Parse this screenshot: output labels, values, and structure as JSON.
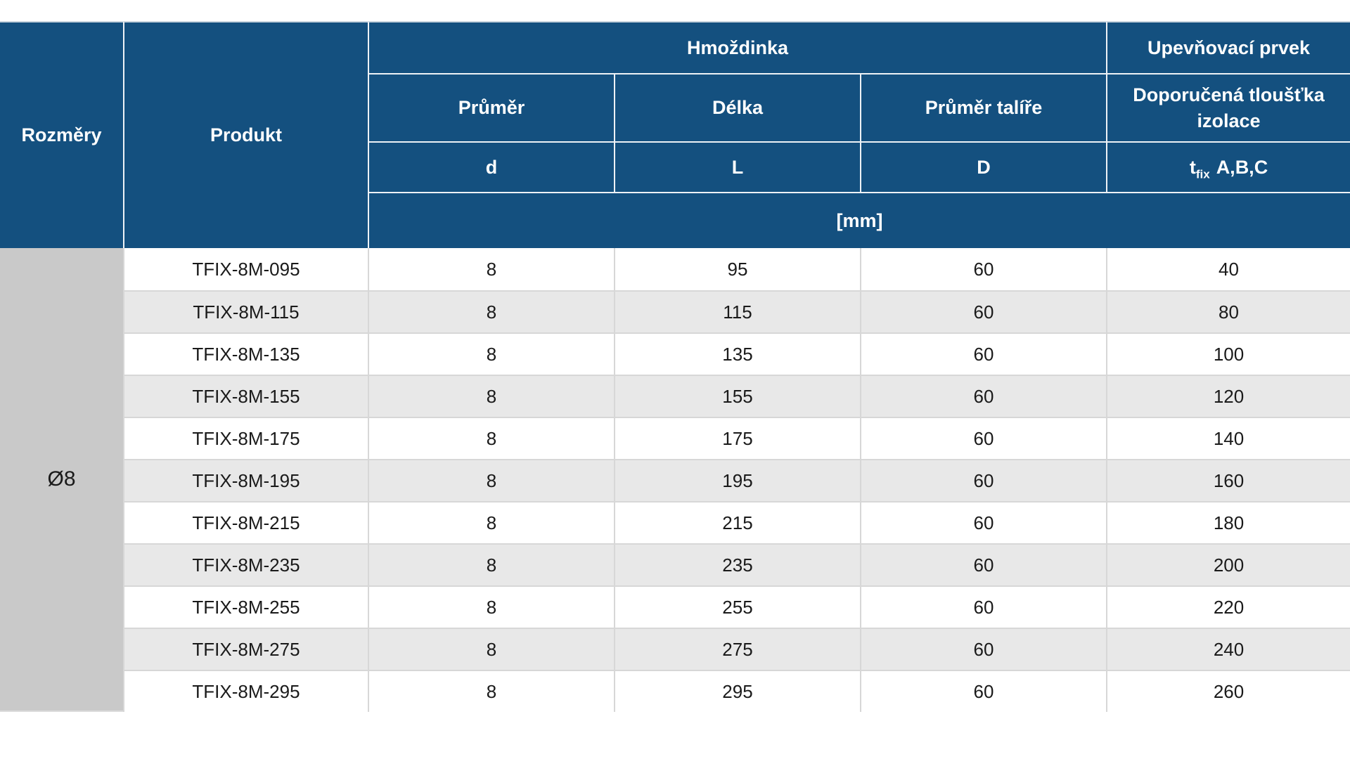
{
  "page": {
    "background": "#ffffff"
  },
  "colors": {
    "header_bg": "#14507f",
    "header_divider": "#eef2f6",
    "table_top_edge": "#c9d5de",
    "size_group_bg": "#c9c9c9",
    "stripe_bg": "#e8e8e8",
    "data_divider": "#d7d7d7",
    "header_text": "#ffffff",
    "data_text": "#1a1a1a"
  },
  "table": {
    "header": {
      "rozmery": "Rozměry",
      "produkt": "Produkt",
      "hmozdinka_group": "Hmoždinka",
      "upevnovaci_group": "Upevňovací prvek",
      "prumer": "Průměr",
      "delka": "Délka",
      "prumer_talire": "Průměr talíře",
      "doporucena_tloustka": "Doporučená tloušťka izolace",
      "d_symbol": "d",
      "l_symbol": "L",
      "big_d_symbol": "D",
      "tfix_base": "t",
      "tfix_sub": "fix",
      "tfix_suffix": "A,B,C",
      "unit_row": "[mm]"
    },
    "size_group": "Ø8",
    "rows": [
      {
        "product": "TFIX-8M-095",
        "d": "8",
        "l": "95",
        "dd": "60",
        "tfix": "40"
      },
      {
        "product": "TFIX-8M-115",
        "d": "8",
        "l": "115",
        "dd": "60",
        "tfix": "80"
      },
      {
        "product": "TFIX-8M-135",
        "d": "8",
        "l": "135",
        "dd": "60",
        "tfix": "100"
      },
      {
        "product": "TFIX-8M-155",
        "d": "8",
        "l": "155",
        "dd": "60",
        "tfix": "120"
      },
      {
        "product": "TFIX-8M-175",
        "d": "8",
        "l": "175",
        "dd": "60",
        "tfix": "140"
      },
      {
        "product": "TFIX-8M-195",
        "d": "8",
        "l": "195",
        "dd": "60",
        "tfix": "160"
      },
      {
        "product": "TFIX-8M-215",
        "d": "8",
        "l": "215",
        "dd": "60",
        "tfix": "180"
      },
      {
        "product": "TFIX-8M-235",
        "d": "8",
        "l": "235",
        "dd": "60",
        "tfix": "200"
      },
      {
        "product": "TFIX-8M-255",
        "d": "8",
        "l": "255",
        "dd": "60",
        "tfix": "220"
      },
      {
        "product": "TFIX-8M-275",
        "d": "8",
        "l": "275",
        "dd": "60",
        "tfix": "240"
      },
      {
        "product": "TFIX-8M-295",
        "d": "8",
        "l": "295",
        "dd": "60",
        "tfix": "260"
      }
    ]
  }
}
